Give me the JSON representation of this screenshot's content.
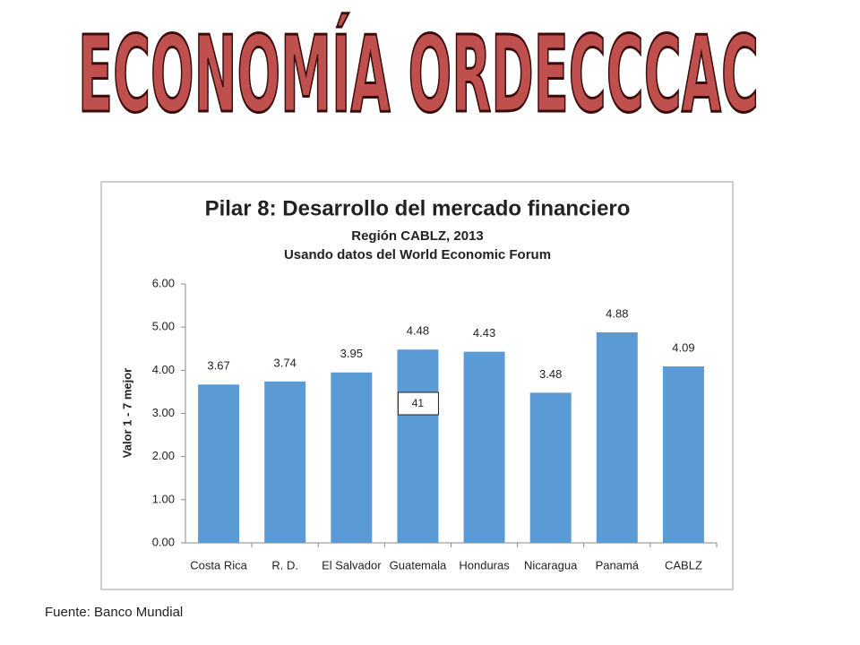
{
  "header": {
    "title": "ECONOMÍA ORDECCCAC"
  },
  "chart_data": {
    "type": "bar",
    "title": "Pilar 8: Desarrollo del mercado financiero",
    "subtitle": "Región CABLZ, 2013",
    "subtitle2": "Usando datos del World Economic Forum",
    "ylabel": "Valor 1 - 7 mejor",
    "categories": [
      "Costa Rica",
      "R. D.",
      "El Salvador",
      "Guatemala",
      "Honduras",
      "Nicaragua",
      "Panamá",
      "CABLZ"
    ],
    "values": [
      3.67,
      3.74,
      3.95,
      4.48,
      4.43,
      3.48,
      4.88,
      4.09
    ],
    "color": "#5b9bd5",
    "ylim": [
      0,
      6
    ],
    "yticks": [
      {
        "value": 0,
        "label": "0.00"
      },
      {
        "value": 1,
        "label": "1.00"
      },
      {
        "value": 2,
        "label": "2.00"
      },
      {
        "value": 3,
        "label": "3.00"
      },
      {
        "value": 4,
        "label": "4.00"
      },
      {
        "value": 5,
        "label": "5.00"
      },
      {
        "value": 6,
        "label": "6.00"
      }
    ],
    "annotation": "41"
  },
  "footer": {
    "source": "Fuente: Banco Mundial"
  }
}
